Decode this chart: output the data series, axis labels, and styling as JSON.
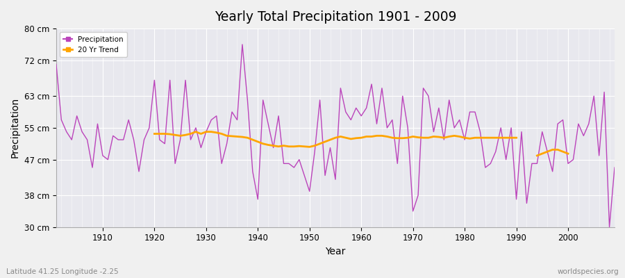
{
  "title": "Yearly Total Precipitation 1901 - 2009",
  "xlabel": "Year",
  "ylabel": "Precipitation",
  "subtitle": "Latitude 41.25 Longitude -2.25",
  "watermark": "worldspecies.org",
  "ylim": [
    30,
    80
  ],
  "yticks": [
    30,
    38,
    47,
    55,
    63,
    72,
    80
  ],
  "ytick_labels": [
    "30 cm",
    "38 cm",
    "47 cm",
    "55 cm",
    "63 cm",
    "72 cm",
    "80 cm"
  ],
  "xlim": [
    1901,
    2009
  ],
  "precip_color": "#BB44BB",
  "trend_color": "#FFA500",
  "bg_color": "#E8E8EE",
  "fig_color": "#F0F0F0",
  "grid_color": "#FFFFFF",
  "years": [
    1901,
    1902,
    1903,
    1904,
    1905,
    1906,
    1907,
    1908,
    1909,
    1910,
    1911,
    1912,
    1913,
    1914,
    1915,
    1916,
    1917,
    1918,
    1919,
    1920,
    1921,
    1922,
    1923,
    1924,
    1925,
    1926,
    1927,
    1928,
    1929,
    1930,
    1931,
    1932,
    1933,
    1934,
    1935,
    1936,
    1937,
    1938,
    1939,
    1940,
    1941,
    1942,
    1943,
    1944,
    1945,
    1946,
    1947,
    1948,
    1949,
    1950,
    1951,
    1952,
    1953,
    1954,
    1955,
    1956,
    1957,
    1958,
    1959,
    1960,
    1961,
    1962,
    1963,
    1964,
    1965,
    1966,
    1967,
    1968,
    1969,
    1970,
    1971,
    1972,
    1973,
    1974,
    1975,
    1976,
    1977,
    1978,
    1979,
    1980,
    1981,
    1982,
    1983,
    1984,
    1985,
    1986,
    1987,
    1988,
    1989,
    1990,
    1991,
    1992,
    1993,
    1994,
    1995,
    1996,
    1997,
    1998,
    1999,
    2000,
    2001,
    2002,
    2003,
    2004,
    2005,
    2006,
    2007,
    2008,
    2009
  ],
  "precipitation": [
    71,
    57,
    54,
    52,
    58,
    54,
    52,
    45,
    56,
    48,
    47,
    53,
    52,
    52,
    57,
    52,
    44,
    52,
    55,
    67,
    52,
    51,
    67,
    46,
    52,
    67,
    52,
    55,
    50,
    54,
    57,
    58,
    46,
    51,
    59,
    57,
    76,
    62,
    44,
    37,
    62,
    56,
    50,
    58,
    46,
    46,
    45,
    47,
    43,
    39,
    49,
    62,
    43,
    50,
    42,
    65,
    59,
    57,
    60,
    58,
    60,
    66,
    56,
    65,
    55,
    57,
    46,
    63,
    55,
    34,
    38,
    65,
    63,
    54,
    60,
    52,
    62,
    55,
    57,
    52,
    59,
    59,
    54,
    45,
    46,
    49,
    55,
    47,
    55,
    37,
    54,
    36,
    46,
    46,
    54,
    49,
    44,
    56,
    57,
    46,
    47,
    56,
    53,
    56,
    63,
    48,
    64,
    30,
    45
  ],
  "trend_years": [
    1920,
    1921,
    1922,
    1923,
    1924,
    1925,
    1926,
    1927,
    1928,
    1929,
    1930,
    1931,
    1932,
    1933,
    1934,
    1935,
    1936,
    1937,
    1938,
    1939,
    1940,
    1941,
    1942,
    1943,
    1944,
    1945,
    1946,
    1947,
    1948,
    1949,
    1950,
    1951,
    1952,
    1953,
    1954,
    1955,
    1956,
    1957,
    1958,
    1959,
    1960,
    1961,
    1962,
    1963,
    1964,
    1965,
    1966,
    1967,
    1968,
    1969,
    1970,
    1971,
    1972,
    1973,
    1974,
    1975,
    1976,
    1977,
    1978,
    1979,
    1980,
    1981,
    1982,
    1983,
    1984,
    1985,
    1986,
    1987,
    1988,
    1989,
    1990,
    1994,
    1995,
    1996,
    1997,
    1998,
    1999,
    2000
  ],
  "trend_values": [
    53.5,
    53.5,
    53.5,
    53.4,
    53.2,
    53.0,
    53.2,
    53.5,
    54.0,
    53.5,
    54.0,
    54.0,
    53.8,
    53.5,
    53.0,
    52.9,
    52.8,
    52.7,
    52.5,
    52.0,
    51.5,
    51.0,
    50.7,
    50.5,
    50.3,
    50.5,
    50.3,
    50.3,
    50.4,
    50.3,
    50.2,
    50.5,
    51.0,
    51.5,
    52.0,
    52.5,
    52.8,
    52.5,
    52.2,
    52.4,
    52.5,
    52.8,
    52.8,
    53.0,
    53.0,
    52.8,
    52.5,
    52.4,
    52.4,
    52.5,
    52.8,
    52.6,
    52.5,
    52.5,
    52.8,
    52.7,
    52.5,
    52.8,
    53.0,
    52.8,
    52.5,
    52.3,
    52.5,
    52.5,
    52.5,
    52.5,
    52.5,
    52.5,
    52.5,
    52.5,
    52.5,
    48.0,
    48.5,
    49.0,
    49.5,
    49.5,
    49.0,
    48.5
  ]
}
